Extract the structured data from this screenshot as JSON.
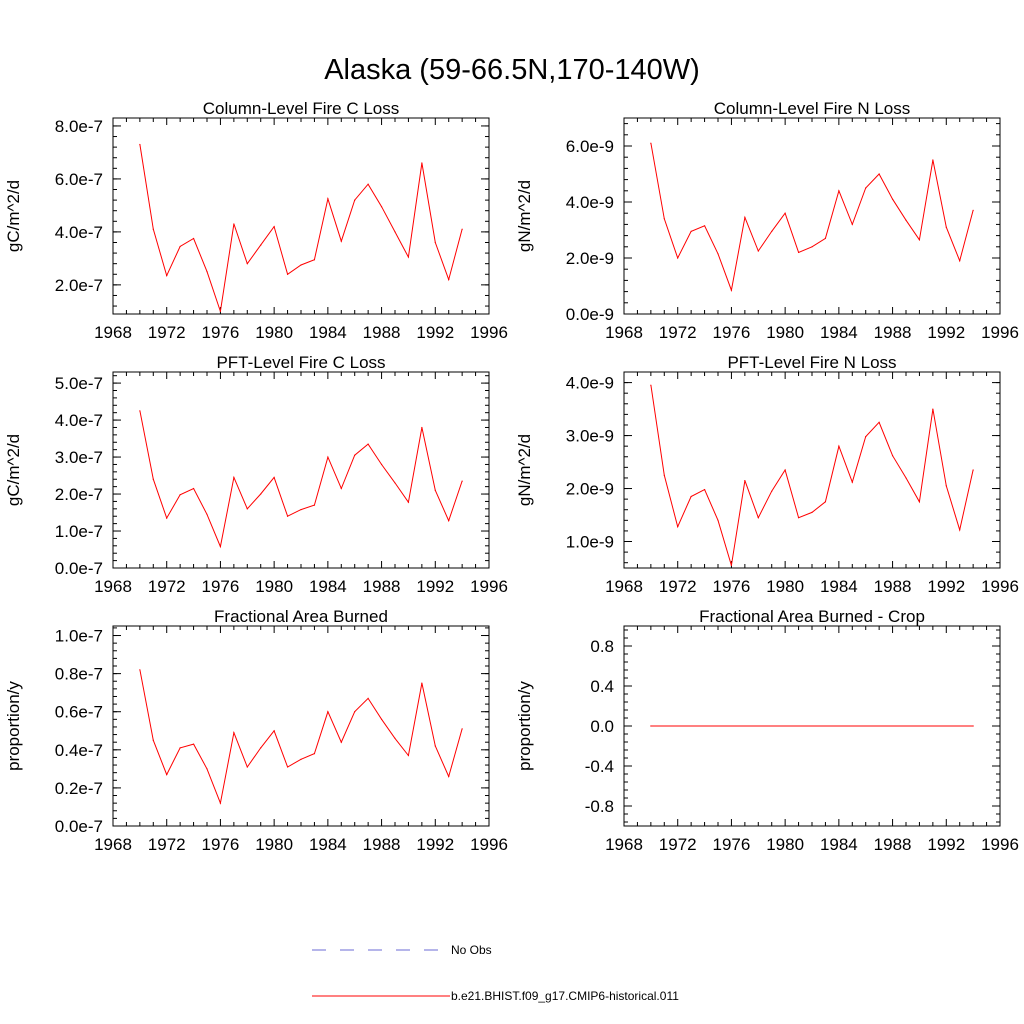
{
  "figure": {
    "title": "Alaska (59-66.5N,170-140W)",
    "legend": [
      {
        "label": "No Obs",
        "color": "#6b6bd6",
        "style": "dashed"
      },
      {
        "label": "b.e21.BHIST.f09_g17.CMIP6-historical.011",
        "color": "#ff0000",
        "style": "solid"
      }
    ]
  },
  "chart_data": [
    {
      "type": "line",
      "title": "Column-Level Fire C Loss",
      "ylabel": "gC/m^2/d",
      "xlabel": "",
      "xlim": [
        1968,
        1996
      ],
      "ylim": [
        9e-08,
        8.3e-07
      ],
      "xticks": [
        1968,
        1972,
        1976,
        1980,
        1984,
        1988,
        1992,
        1996
      ],
      "yticks": [
        2e-07,
        4e-07,
        6e-07,
        8e-07
      ],
      "ytick_labels": [
        "2.0e-7",
        "4.0e-7",
        "6.0e-7",
        "8.0e-7"
      ],
      "grid": false,
      "series": [
        {
          "color": "#ff0000",
          "x": [
            1970,
            1971,
            1972,
            1973,
            1974,
            1975,
            1976,
            1977,
            1978,
            1979,
            1980,
            1981,
            1982,
            1983,
            1984,
            1985,
            1986,
            1987,
            1988,
            1989,
            1990,
            1991,
            1992,
            1993,
            1994
          ],
          "values": [
            7.3e-07,
            4.1e-07,
            2.35e-07,
            3.45e-07,
            3.75e-07,
            2.5e-07,
            1e-07,
            4.3e-07,
            2.8e-07,
            3.5e-07,
            4.2e-07,
            2.4e-07,
            2.75e-07,
            2.95e-07,
            5.25e-07,
            3.65e-07,
            5.2e-07,
            5.8e-07,
            4.95e-07,
            4e-07,
            3.05e-07,
            6.6e-07,
            3.6e-07,
            2.2e-07,
            4.1e-07
          ]
        }
      ]
    },
    {
      "type": "line",
      "title": "Column-Level Fire N Loss",
      "ylabel": "gN/m^2/d",
      "xlabel": "",
      "xlim": [
        1968,
        1996
      ],
      "ylim": [
        0.0,
        7e-09
      ],
      "xticks": [
        1968,
        1972,
        1976,
        1980,
        1984,
        1988,
        1992,
        1996
      ],
      "yticks": [
        0.0,
        2e-09,
        4e-09,
        6e-09
      ],
      "ytick_labels": [
        "0.0e-9",
        "2.0e-9",
        "4.0e-9",
        "6.0e-9"
      ],
      "grid": false,
      "series": [
        {
          "color": "#ff0000",
          "x": [
            1970,
            1971,
            1972,
            1973,
            1974,
            1975,
            1976,
            1977,
            1978,
            1979,
            1980,
            1981,
            1982,
            1983,
            1984,
            1985,
            1986,
            1987,
            1988,
            1989,
            1990,
            1991,
            1992,
            1993,
            1994
          ],
          "values": [
            6.1e-09,
            3.4e-09,
            2e-09,
            2.95e-09,
            3.15e-09,
            2.15e-09,
            8.5e-10,
            3.45e-09,
            2.25e-09,
            2.95e-09,
            3.6e-09,
            2.2e-09,
            2.4e-09,
            2.7e-09,
            4.4e-09,
            3.2e-09,
            4.5e-09,
            5e-09,
            4.1e-09,
            3.35e-09,
            2.65e-09,
            5.5e-09,
            3.1e-09,
            1.9e-09,
            3.7e-09
          ]
        }
      ]
    },
    {
      "type": "line",
      "title": "PFT-Level Fire C Loss",
      "ylabel": "gC/m^2/d",
      "xlabel": "",
      "xlim": [
        1968,
        1996
      ],
      "ylim": [
        0.0,
        5.3e-07
      ],
      "xticks": [
        1968,
        1972,
        1976,
        1980,
        1984,
        1988,
        1992,
        1996
      ],
      "yticks": [
        0.0,
        1e-07,
        2e-07,
        3e-07,
        4e-07,
        5e-07
      ],
      "ytick_labels": [
        "0.0e-7",
        "1.0e-7",
        "2.0e-7",
        "3.0e-7",
        "4.0e-7",
        "5.0e-7"
      ],
      "grid": false,
      "series": [
        {
          "color": "#ff0000",
          "x": [
            1970,
            1971,
            1972,
            1973,
            1974,
            1975,
            1976,
            1977,
            1978,
            1979,
            1980,
            1981,
            1982,
            1983,
            1984,
            1985,
            1986,
            1987,
            1988,
            1989,
            1990,
            1991,
            1992,
            1993,
            1994
          ],
          "values": [
            4.25e-07,
            2.4e-07,
            1.35e-07,
            1.98e-07,
            2.15e-07,
            1.45e-07,
            5.8e-08,
            2.45e-07,
            1.6e-07,
            2e-07,
            2.45e-07,
            1.4e-07,
            1.58e-07,
            1.7e-07,
            3e-07,
            2.15e-07,
            3.05e-07,
            3.35e-07,
            2.8e-07,
            2.3e-07,
            1.78e-07,
            3.8e-07,
            2.1e-07,
            1.28e-07,
            2.35e-07
          ]
        }
      ]
    },
    {
      "type": "line",
      "title": "PFT-Level Fire N Loss",
      "ylabel": "gN/m^2/d",
      "xlabel": "",
      "xlim": [
        1968,
        1996
      ],
      "ylim": [
        5e-10,
        4.2e-09
      ],
      "xticks": [
        1968,
        1972,
        1976,
        1980,
        1984,
        1988,
        1992,
        1996
      ],
      "yticks": [
        1e-09,
        2e-09,
        3e-09,
        4e-09
      ],
      "ytick_labels": [
        "1.0e-9",
        "2.0e-9",
        "3.0e-9",
        "4.0e-9"
      ],
      "grid": false,
      "series": [
        {
          "color": "#ff0000",
          "x": [
            1970,
            1971,
            1972,
            1973,
            1974,
            1975,
            1976,
            1977,
            1978,
            1979,
            1980,
            1981,
            1982,
            1983,
            1984,
            1985,
            1986,
            1987,
            1988,
            1989,
            1990,
            1991,
            1992,
            1993,
            1994
          ],
          "values": [
            3.95e-09,
            2.25e-09,
            1.28e-09,
            1.85e-09,
            1.98e-09,
            1.4e-09,
            5.5e-10,
            2.15e-09,
            1.45e-09,
            1.95e-09,
            2.35e-09,
            1.45e-09,
            1.55e-09,
            1.75e-09,
            2.8e-09,
            2.12e-09,
            2.98e-09,
            3.25e-09,
            2.62e-09,
            2.2e-09,
            1.75e-09,
            3.5e-09,
            2.05e-09,
            1.22e-09,
            2.35e-09
          ]
        }
      ]
    },
    {
      "type": "line",
      "title": "Fractional Area Burned",
      "ylabel": "proportion/y",
      "xlabel": "",
      "xlim": [
        1968,
        1996
      ],
      "ylim": [
        0.0,
        1.05e-07
      ],
      "xticks": [
        1968,
        1972,
        1976,
        1980,
        1984,
        1988,
        1992,
        1996
      ],
      "yticks": [
        0.0,
        2e-08,
        4e-08,
        6e-08,
        8e-08,
        1e-07
      ],
      "ytick_labels": [
        "0.0e-7",
        "0.2e-7",
        "0.4e-7",
        "0.6e-7",
        "0.8e-7",
        "1.0e-7"
      ],
      "grid": false,
      "series": [
        {
          "color": "#ff0000",
          "x": [
            1970,
            1971,
            1972,
            1973,
            1974,
            1975,
            1976,
            1977,
            1978,
            1979,
            1980,
            1981,
            1982,
            1983,
            1984,
            1985,
            1986,
            1987,
            1988,
            1989,
            1990,
            1991,
            1992,
            1993,
            1994
          ],
          "values": [
            8.2e-08,
            4.5e-08,
            2.7e-08,
            4.1e-08,
            4.3e-08,
            3e-08,
            1.2e-08,
            4.9e-08,
            3.1e-08,
            4.1e-08,
            5e-08,
            3.1e-08,
            3.5e-08,
            3.8e-08,
            6e-08,
            4.4e-08,
            6e-08,
            6.7e-08,
            5.6e-08,
            4.6e-08,
            3.7e-08,
            7.5e-08,
            4.2e-08,
            2.6e-08,
            5.1e-08
          ]
        }
      ]
    },
    {
      "type": "line",
      "title": "Fractional Area Burned - Crop",
      "ylabel": "proportion/y",
      "xlabel": "",
      "xlim": [
        1968,
        1996
      ],
      "ylim": [
        -1.0,
        1.0
      ],
      "xticks": [
        1968,
        1972,
        1976,
        1980,
        1984,
        1988,
        1992,
        1996
      ],
      "yticks": [
        -0.8,
        -0.4,
        0.0,
        0.4,
        0.8
      ],
      "ytick_labels": [
        "-0.8",
        "-0.4",
        "0.0",
        "0.4",
        "0.8"
      ],
      "grid": false,
      "series": [
        {
          "color": "#ff0000",
          "x": [
            1970,
            1994
          ],
          "values": [
            0.0,
            0.0
          ]
        }
      ]
    }
  ]
}
